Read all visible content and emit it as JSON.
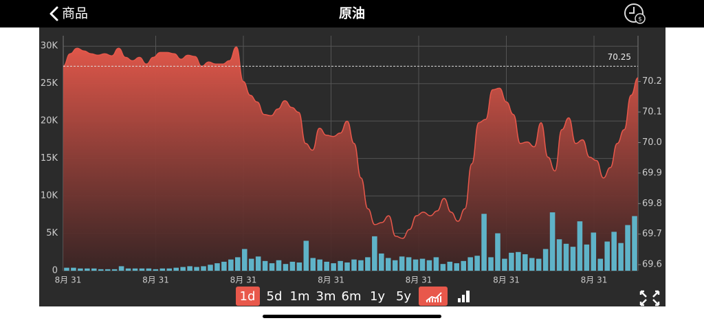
{
  "header": {
    "back": "商品",
    "title": "原油"
  },
  "ranges": {
    "items": [
      "1d",
      "5d",
      "1m",
      "3m",
      "6m",
      "1y",
      "5y"
    ],
    "active": 0
  },
  "chart_data": {
    "type": "line",
    "x_labels": [
      "8月 31",
      "8月 31",
      "8月 31",
      "8月 31",
      "8月 31",
      "8月 31",
      "8月 31"
    ],
    "ylim": [
      0,
      31400
    ],
    "yticks": [
      {
        "value": 0,
        "label": "0"
      },
      {
        "value": 5000,
        "label": "5K"
      },
      {
        "value": 10000,
        "label": "10K"
      },
      {
        "value": 15000,
        "label": "15K"
      },
      {
        "value": 20000,
        "label": "20K"
      },
      {
        "value": 25000,
        "label": "25K"
      },
      {
        "value": 30000,
        "label": "30K"
      }
    ],
    "y2lim": [
      69.58,
      70.35
    ],
    "y2ticks": [
      69.6,
      69.7,
      69.8,
      69.9,
      {
        "value": 70,
        "label": "70.0"
      },
      70.1,
      70.2
    ],
    "last_price": 70.25,
    "grid": true,
    "series": [
      {
        "type": "area",
        "axis": "y2",
        "color": "#e8584b",
        "values": [
          70.25,
          70.291,
          70.309,
          70.3,
          70.291,
          70.286,
          70.291,
          70.284,
          70.309,
          70.279,
          70.268,
          70.279,
          70.257,
          70.279,
          70.295,
          70.295,
          70.291,
          70.273,
          70.286,
          70.282,
          70.25,
          70.264,
          70.257,
          70.257,
          70.268,
          70.313,
          70.2,
          70.155,
          70.133,
          70.092,
          70.088,
          70.11,
          70.137,
          70.115,
          70.099,
          69.997,
          69.975,
          70.047,
          70.024,
          70.02,
          70.031,
          70.07,
          69.997,
          69.884,
          69.783,
          69.731,
          69.738,
          69.76,
          69.693,
          69.686,
          69.715,
          69.76,
          69.772,
          69.76,
          69.776,
          69.817,
          69.772,
          69.742,
          69.783,
          69.93,
          70.065,
          70.076,
          70.173,
          70.178,
          70.133,
          70.092,
          69.997,
          70.002,
          69.986,
          70.065,
          69.952,
          69.907,
          70.042,
          70.081,
          69.997,
          70.009,
          69.952,
          69.941,
          69.884,
          69.918,
          69.997,
          70.042,
          70.155,
          70.212
        ]
      },
      {
        "type": "bar",
        "color": "#5fb3c8",
        "values": [
          400,
          400,
          300,
          300,
          300,
          200,
          200,
          200,
          600,
          300,
          300,
          300,
          300,
          200,
          300,
          300,
          400,
          500,
          600,
          500,
          600,
          800,
          1000,
          1200,
          1500,
          1800,
          2900,
          1600,
          1900,
          1300,
          1000,
          1400,
          900,
          1200,
          1100,
          4000,
          1700,
          1500,
          1200,
          1000,
          1300,
          1100,
          1500,
          1400,
          1800,
          4600,
          2300,
          1700,
          1400,
          1900,
          1800,
          1500,
          1600,
          1400,
          1800,
          900,
          1200,
          1000,
          1300,
          1800,
          2000,
          7600,
          1800,
          5000,
          1600,
          2400,
          2500,
          2200,
          1700,
          1600,
          2900,
          7800,
          4200,
          3600,
          3200,
          6600,
          3500,
          5100,
          1600,
          3900,
          5200,
          3700,
          6100,
          7300
        ]
      }
    ]
  }
}
